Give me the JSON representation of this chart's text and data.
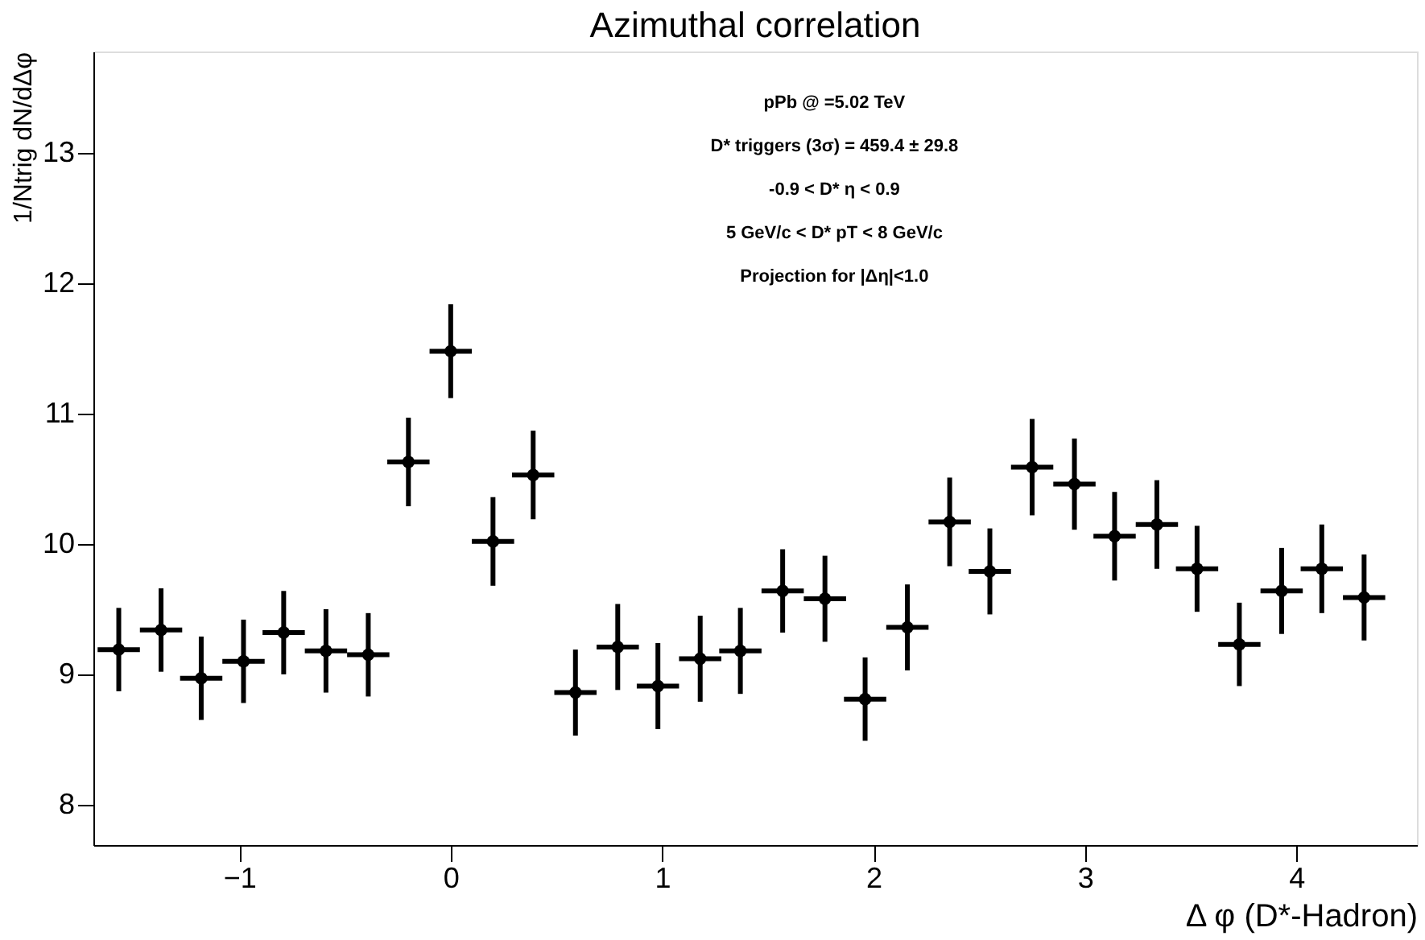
{
  "chart_data": {
    "type": "scatter",
    "title": "Azimuthal correlation",
    "xlabel": "Δ φ (D*-Hadron)",
    "ylabel": "1/Ntrig dN/dΔφ",
    "x": [
      -1.57,
      -1.37,
      -1.18,
      -0.98,
      -0.79,
      -0.59,
      -0.39,
      -0.2,
      0.0,
      0.2,
      0.39,
      0.59,
      0.79,
      0.98,
      1.18,
      1.37,
      1.57,
      1.77,
      1.96,
      2.16,
      2.36,
      2.55,
      2.75,
      2.95,
      3.14,
      3.34,
      3.53,
      3.73,
      3.93,
      4.12,
      4.32
    ],
    "series": [
      {
        "color": "#000000",
        "values": [
          9.19,
          9.34,
          8.97,
          9.1,
          9.32,
          9.18,
          9.15,
          10.63,
          11.48,
          10.02,
          10.53,
          8.86,
          9.21,
          8.91,
          9.12,
          9.18,
          9.64,
          9.58,
          8.81,
          9.36,
          10.17,
          9.79,
          10.59,
          10.46,
          10.06,
          10.15,
          9.81,
          9.23,
          9.64,
          9.81,
          9.59
        ],
        "errors": [
          0.32,
          0.32,
          0.32,
          0.32,
          0.32,
          0.32,
          0.32,
          0.34,
          0.36,
          0.34,
          0.34,
          0.33,
          0.33,
          0.33,
          0.33,
          0.33,
          0.32,
          0.33,
          0.32,
          0.33,
          0.34,
          0.33,
          0.37,
          0.35,
          0.34,
          0.34,
          0.33,
          0.32,
          0.33,
          0.34,
          0.33
        ],
        "xerrors": [
          0.1,
          0.1,
          0.1,
          0.1,
          0.1,
          0.1,
          0.1,
          0.1,
          0.1,
          0.1,
          0.1,
          0.1,
          0.1,
          0.1,
          0.1,
          0.1,
          0.1,
          0.1,
          0.1,
          0.1,
          0.1,
          0.1,
          0.1,
          0.1,
          0.1,
          0.1,
          0.1,
          0.1,
          0.1,
          0.1,
          0.1
        ]
      }
    ],
    "marker": "circle",
    "xlim": [
      -1.69,
      4.57
    ],
    "xticks": [
      -1,
      0,
      1,
      2,
      3,
      4
    ],
    "ylim": [
      7.69,
      13.78
    ],
    "yticks": [
      8,
      9,
      10,
      11,
      12,
      13
    ],
    "grid": false,
    "annotations": [
      "pPb @ =5.02 TeV",
      "D* triggers (3σ) = 459.4 ± 29.8",
      "-0.9 < D* η < 0.9",
      "5 GeV/c < D* pT < 8 GeV/c",
      "Projection for |Δη|<1.0"
    ]
  }
}
